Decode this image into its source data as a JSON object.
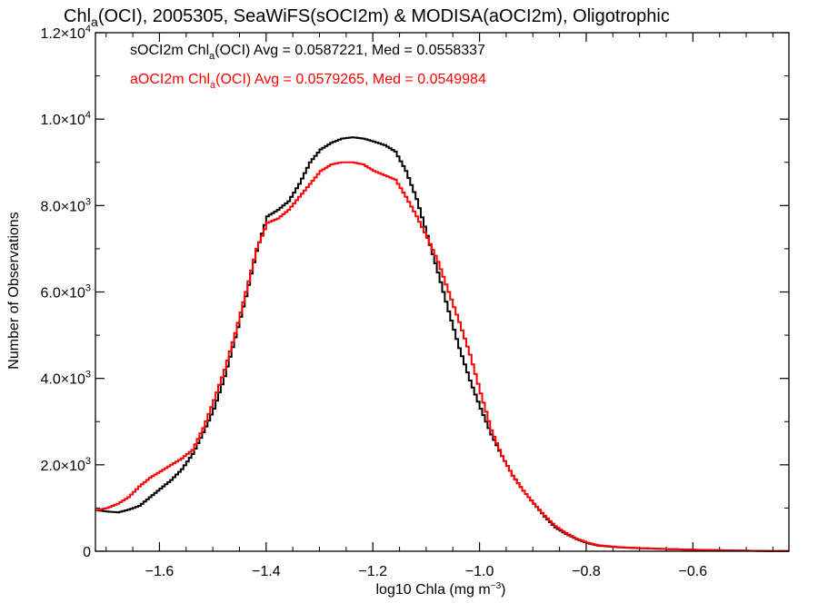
{
  "chart_data": {
    "type": "line",
    "title": {
      "pre": "Chl",
      "sub": "a",
      "post": "(OCI), 2005305, SeaWiFS(sOCI2m) & MODISA(aOCI2m), Oligotrophic"
    },
    "xlabel": {
      "pre": "log10 Chla (mg m",
      "sup": "−3",
      "post": ")"
    },
    "ylabel": "Number of Observations",
    "xlim": [
      -1.72,
      -0.42
    ],
    "ylim": [
      0,
      12000
    ],
    "x_ticks": [
      {
        "value": -1.6,
        "label": "−1.6"
      },
      {
        "value": -1.4,
        "label": "−1.4"
      },
      {
        "value": -1.2,
        "label": "−1.2"
      },
      {
        "value": -1.0,
        "label": "−1.0"
      },
      {
        "value": -0.8,
        "label": "−0.8"
      },
      {
        "value": -0.6,
        "label": "−0.6"
      }
    ],
    "y_ticks": [
      {
        "value": 0,
        "mant": "0",
        "exp": ""
      },
      {
        "value": 2000,
        "mant": "2.0×10",
        "exp": "3"
      },
      {
        "value": 4000,
        "mant": "4.0×10",
        "exp": "3"
      },
      {
        "value": 6000,
        "mant": "6.0×10",
        "exp": "3"
      },
      {
        "value": 8000,
        "mant": "8.0×10",
        "exp": "3"
      },
      {
        "value": 10000,
        "mant": "1.0×10",
        "exp": "4"
      },
      {
        "value": 12000,
        "mant": "1.2×10",
        "exp": "4"
      }
    ],
    "grid": false,
    "legend_position": "top-left",
    "series": [
      {
        "name": "sOCI2m",
        "color": "#000000",
        "legend": {
          "pre": "sOCI2m Chl",
          "sub": "a",
          "post": "(OCI) Avg = 0.0587221, Med = 0.0558337"
        },
        "x": [
          -1.72,
          -1.7,
          -1.68,
          -1.66,
          -1.64,
          -1.62,
          -1.6,
          -1.58,
          -1.56,
          -1.54,
          -1.52,
          -1.5,
          -1.48,
          -1.46,
          -1.44,
          -1.42,
          -1.4,
          -1.38,
          -1.36,
          -1.34,
          -1.32,
          -1.3,
          -1.28,
          -1.26,
          -1.24,
          -1.22,
          -1.2,
          -1.18,
          -1.16,
          -1.14,
          -1.12,
          -1.1,
          -1.08,
          -1.06,
          -1.04,
          -1.02,
          -1.0,
          -0.98,
          -0.96,
          -0.94,
          -0.92,
          -0.9,
          -0.88,
          -0.86,
          -0.84,
          -0.82,
          -0.8,
          -0.78,
          -0.74,
          -0.7,
          -0.66,
          -0.62,
          -0.58,
          -0.54,
          -0.5,
          -0.46,
          -0.42
        ],
        "y": [
          950,
          920,
          900,
          960,
          1050,
          1250,
          1450,
          1650,
          1900,
          2250,
          2750,
          3300,
          4050,
          4950,
          5900,
          6950,
          7750,
          7900,
          8100,
          8500,
          9000,
          9300,
          9450,
          9550,
          9580,
          9550,
          9480,
          9400,
          9250,
          8800,
          8150,
          7300,
          6450,
          5550,
          4700,
          3950,
          3300,
          2700,
          2200,
          1750,
          1400,
          1100,
          800,
          550,
          400,
          280,
          190,
          130,
          90,
          70,
          55,
          40,
          30,
          20,
          12,
          6,
          3
        ]
      },
      {
        "name": "aOCI2m",
        "color": "#ff0000",
        "legend": {
          "pre": "aOCI2m Chl",
          "sub": "a",
          "post": "(OCI) Avg = 0.0579265, Med = 0.0549984"
        },
        "x": [
          -1.72,
          -1.7,
          -1.68,
          -1.66,
          -1.64,
          -1.62,
          -1.6,
          -1.58,
          -1.56,
          -1.54,
          -1.52,
          -1.5,
          -1.48,
          -1.46,
          -1.44,
          -1.42,
          -1.4,
          -1.38,
          -1.36,
          -1.34,
          -1.32,
          -1.3,
          -1.28,
          -1.26,
          -1.24,
          -1.22,
          -1.2,
          -1.18,
          -1.16,
          -1.14,
          -1.12,
          -1.1,
          -1.08,
          -1.06,
          -1.04,
          -1.02,
          -1.0,
          -0.98,
          -0.96,
          -0.94,
          -0.92,
          -0.9,
          -0.88,
          -0.86,
          -0.84,
          -0.82,
          -0.8,
          -0.78,
          -0.74,
          -0.7,
          -0.66,
          -0.62,
          -0.58,
          -0.54,
          -0.5,
          -0.46,
          -0.42
        ],
        "y": [
          950,
          1000,
          1100,
          1250,
          1500,
          1700,
          1850,
          2000,
          2150,
          2350,
          2850,
          3500,
          4200,
          5050,
          6000,
          7000,
          7600,
          7700,
          7900,
          8200,
          8500,
          8800,
          8950,
          9000,
          9000,
          8950,
          8800,
          8700,
          8600,
          8200,
          7750,
          7250,
          6700,
          6000,
          5300,
          4550,
          3650,
          2800,
          2200,
          1750,
          1400,
          1100,
          820,
          580,
          420,
          290,
          200,
          140,
          95,
          72,
          55,
          40,
          30,
          20,
          12,
          6,
          3
        ]
      }
    ]
  }
}
